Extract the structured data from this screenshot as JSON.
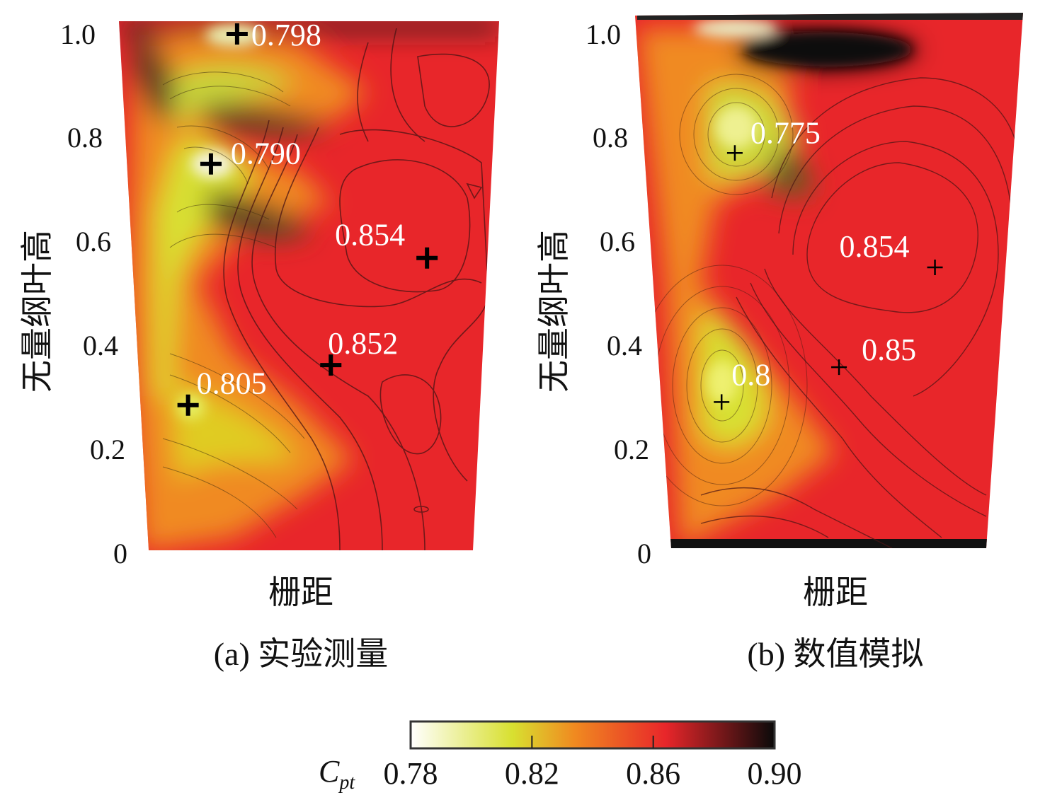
{
  "chart_data": [
    {
      "type": "heatmap",
      "subtype": "contour",
      "title": "(a) 实验测量",
      "xlabel": "栅距",
      "ylabel": "无量纲叶高",
      "ylim": [
        0,
        1.0
      ],
      "yticks": [
        "0",
        "0.2",
        "0.4",
        "0.6",
        "0.8",
        "1.0"
      ],
      "annotations": [
        {
          "label": "0.798",
          "value": 0.798,
          "pitch": 0.31,
          "span": 0.996
        },
        {
          "label": "0.790",
          "value": 0.79,
          "pitch": 0.23,
          "span": 0.746
        },
        {
          "label": "0.854",
          "value": 0.854,
          "pitch": 0.83,
          "span": 0.565
        },
        {
          "label": "0.852",
          "value": 0.852,
          "pitch": 0.56,
          "span": 0.359
        },
        {
          "label": "0.805",
          "value": 0.805,
          "pitch": 0.14,
          "span": 0.282
        }
      ]
    },
    {
      "type": "heatmap",
      "subtype": "contour",
      "title": "(b) 数值模拟",
      "xlabel": "栅距",
      "ylabel": "无量纲叶高",
      "ylim": [
        0,
        1.0
      ],
      "yticks": [
        "0",
        "0.2",
        "0.4",
        "0.6",
        "0.8",
        "1.0"
      ],
      "annotations": [
        {
          "label": "0.775",
          "value": 0.775,
          "pitch": 0.245,
          "span": 0.767
        },
        {
          "label": "0.854",
          "value": 0.854,
          "pitch": 0.8,
          "span": 0.547
        },
        {
          "label": "0.85",
          "value": 0.85,
          "pitch": 0.53,
          "span": 0.355
        },
        {
          "label": "0.8",
          "value": 0.8,
          "pitch": 0.18,
          "span": 0.288
        }
      ]
    }
  ],
  "colorbar": {
    "label_main": "C",
    "label_sub": "pt",
    "range": [
      0.78,
      0.9
    ],
    "ticks": [
      "0.78",
      "0.82",
      "0.86",
      "0.90"
    ],
    "colors": [
      "#ffffff",
      "#d8e030",
      "#f08a20",
      "#e8262a",
      "#000000"
    ]
  }
}
